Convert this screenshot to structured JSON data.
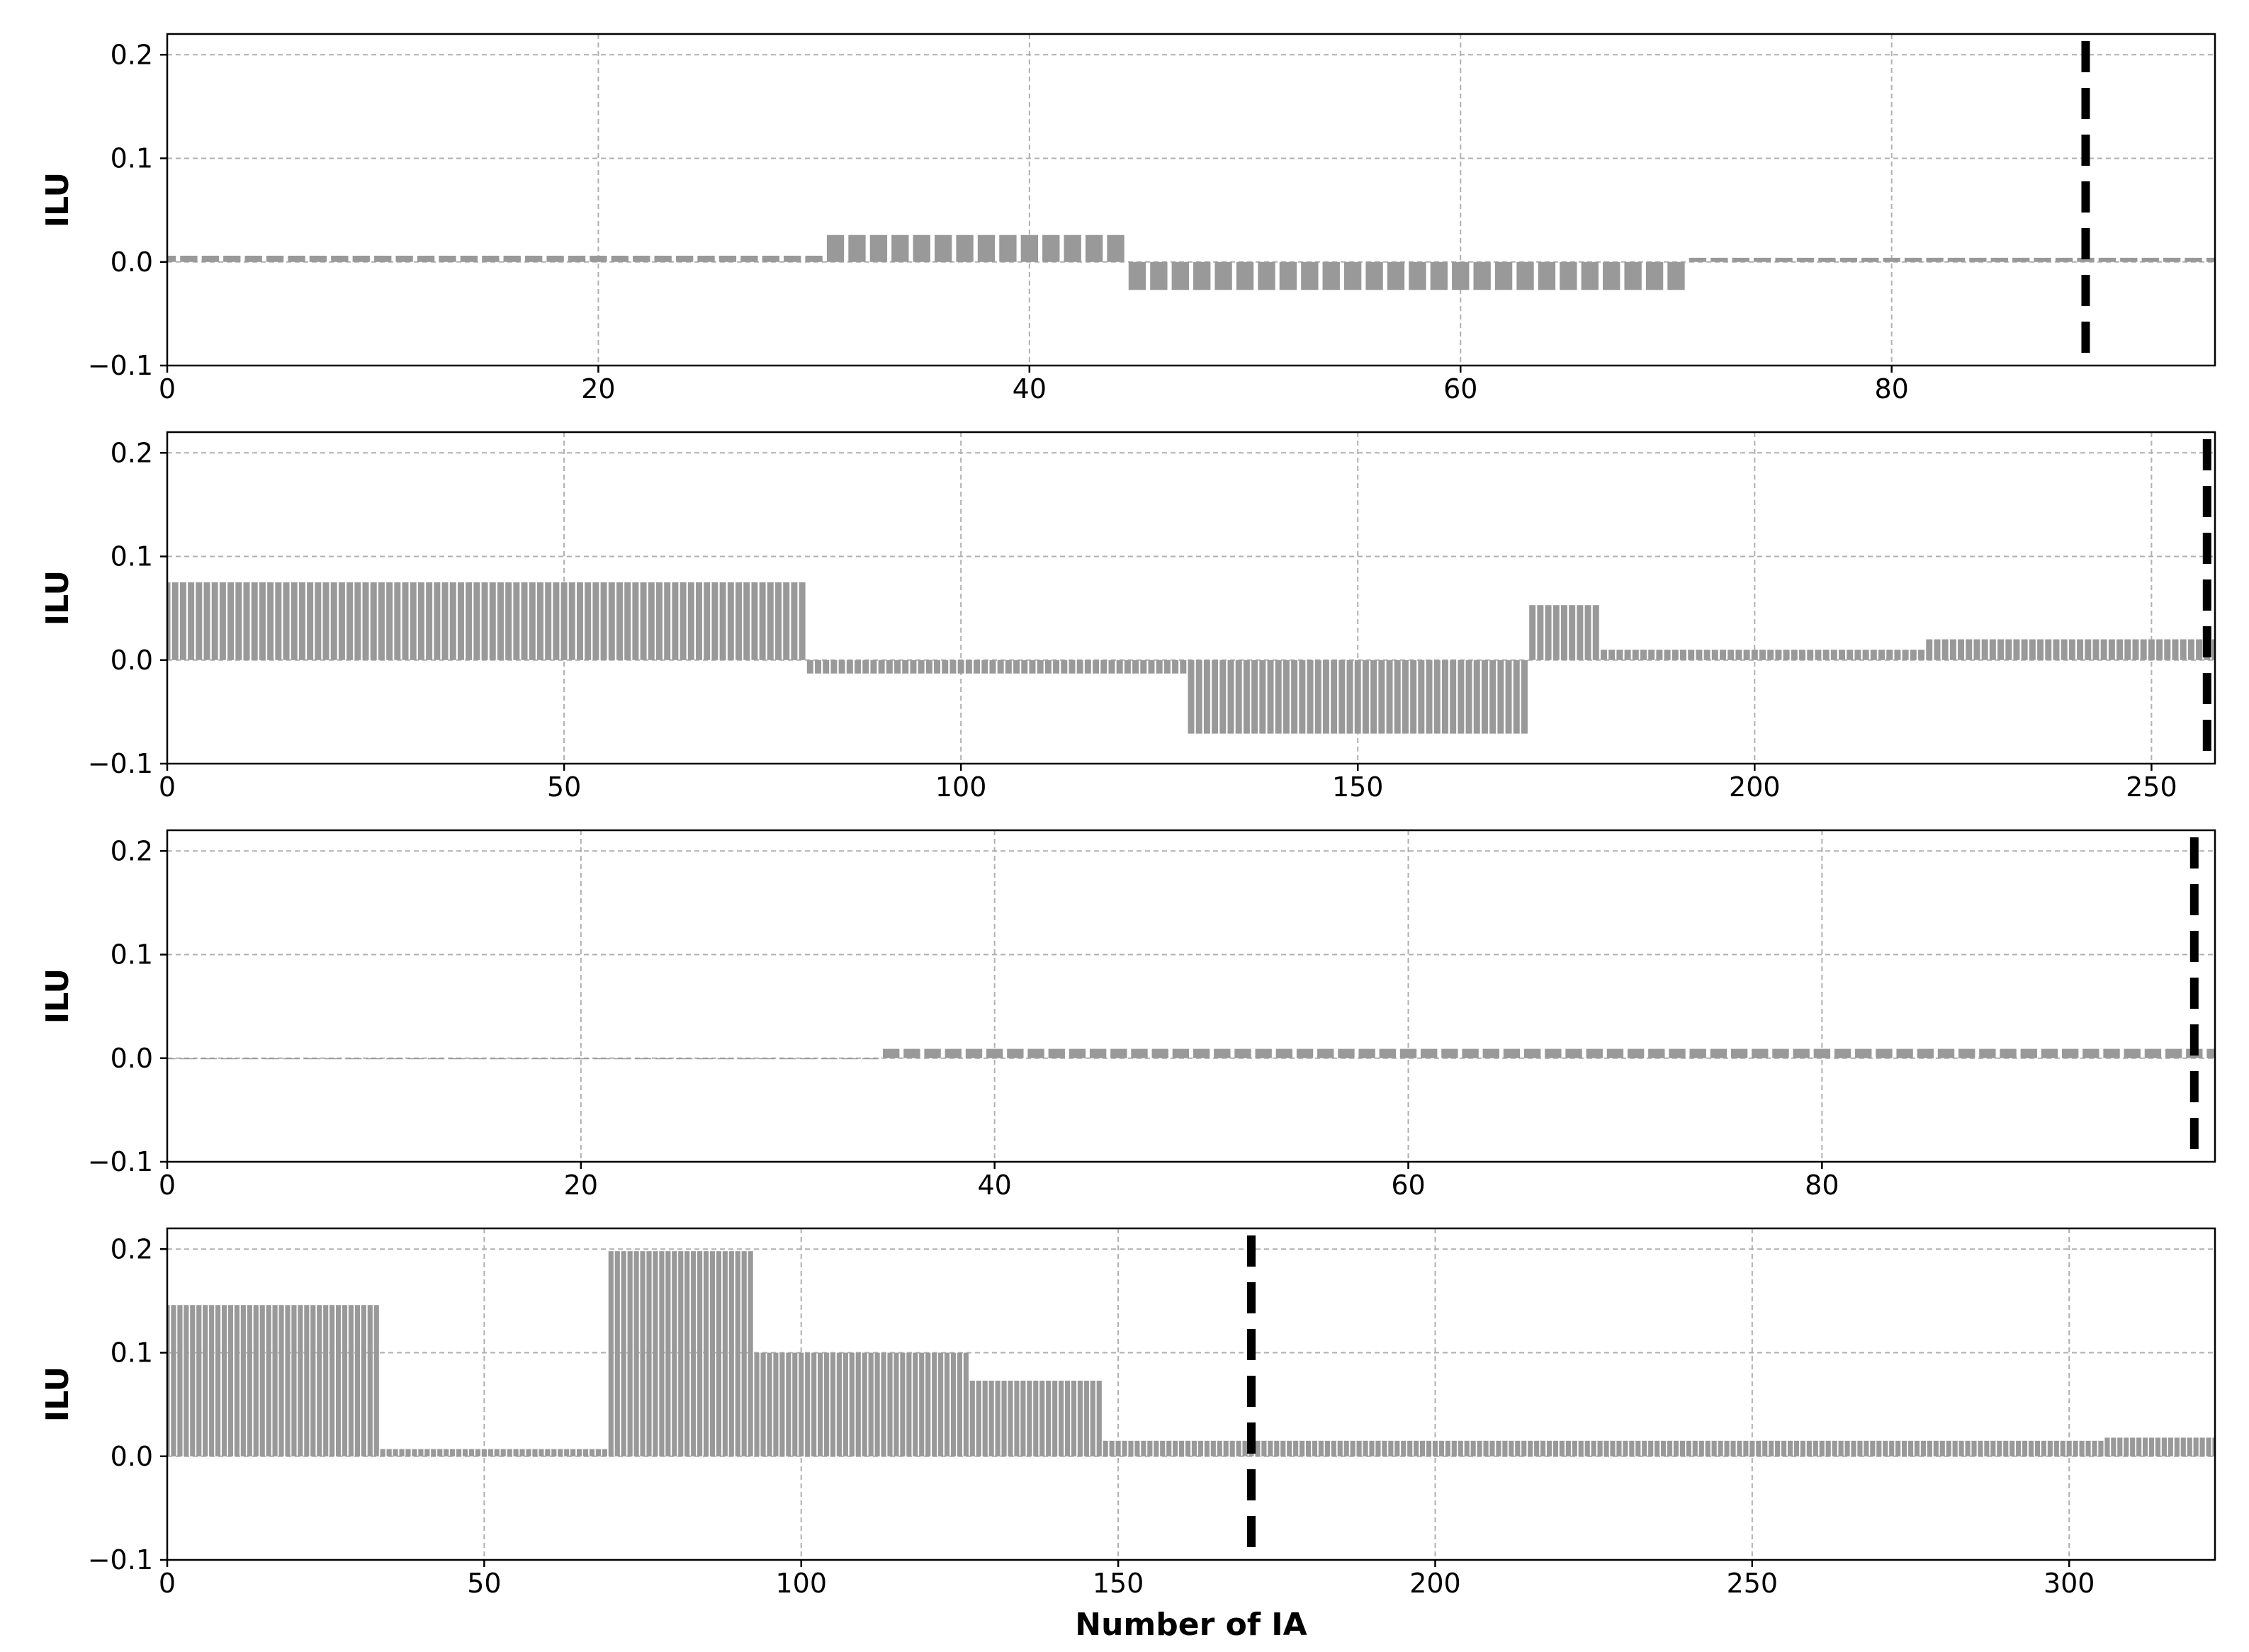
{
  "colors": {
    "bar": "#999999",
    "reference_line": "#000000",
    "grid": "#b0b0b0"
  },
  "chart_data": [
    {
      "type": "bar",
      "ylabel": "ILU",
      "xlabel": "",
      "xlim": [
        0,
        95
      ],
      "ylim": [
        -0.1,
        0.22
      ],
      "xticks": [
        0,
        20,
        40,
        60,
        80
      ],
      "yticks": [
        -0.1,
        0.0,
        0.1,
        0.2
      ],
      "grid": true,
      "reference_line_x": 89,
      "segments": [
        {
          "from": 0,
          "to": 30,
          "value": 0.006
        },
        {
          "from": 31,
          "to": 44,
          "value": 0.026
        },
        {
          "from": 45,
          "to": 70,
          "value": -0.027
        },
        {
          "from": 71,
          "to": 95,
          "value": 0.004
        }
      ]
    },
    {
      "type": "bar",
      "ylabel": "ILU",
      "xlabel": "",
      "xlim": [
        0,
        258
      ],
      "ylim": [
        -0.1,
        0.22
      ],
      "xticks": [
        0,
        50,
        100,
        150,
        200,
        250
      ],
      "yticks": [
        -0.1,
        0.0,
        0.1,
        0.2
      ],
      "grid": true,
      "reference_line_x": 257,
      "segments": [
        {
          "from": 0,
          "to": 80,
          "value": 0.075
        },
        {
          "from": 81,
          "to": 128,
          "value": -0.013
        },
        {
          "from": 129,
          "to": 171,
          "value": -0.071
        },
        {
          "from": 172,
          "to": 180,
          "value": 0.053
        },
        {
          "from": 181,
          "to": 221,
          "value": 0.01
        },
        {
          "from": 222,
          "to": 258,
          "value": 0.02
        }
      ]
    },
    {
      "type": "bar",
      "ylabel": "ILU",
      "xlabel": "",
      "xlim": [
        0,
        99
      ],
      "ylim": [
        -0.1,
        0.22
      ],
      "xticks": [
        0,
        20,
        40,
        60,
        80
      ],
      "yticks": [
        -0.1,
        0.0,
        0.1,
        0.2
      ],
      "grid": true,
      "reference_line_x": 98,
      "segments": [
        {
          "from": 0,
          "to": 34,
          "value": -0.001
        },
        {
          "from": 35,
          "to": 99,
          "value": 0.009
        }
      ]
    },
    {
      "type": "bar",
      "ylabel": "ILU",
      "xlabel": "Number of IA",
      "xlim": [
        0,
        323
      ],
      "ylim": [
        -0.1,
        0.22
      ],
      "xticks": [
        0,
        50,
        100,
        150,
        200,
        250,
        300
      ],
      "yticks": [
        -0.1,
        0.0,
        0.1,
        0.2
      ],
      "grid": true,
      "reference_line_x": 171,
      "segments": [
        {
          "from": 0,
          "to": 33,
          "value": 0.146
        },
        {
          "from": 34,
          "to": 69,
          "value": 0.007
        },
        {
          "from": 70,
          "to": 92,
          "value": 0.198
        },
        {
          "from": 93,
          "to": 126,
          "value": 0.1
        },
        {
          "from": 127,
          "to": 147,
          "value": 0.073
        },
        {
          "from": 148,
          "to": 305,
          "value": 0.015
        },
        {
          "from": 306,
          "to": 323,
          "value": 0.018
        }
      ]
    }
  ]
}
